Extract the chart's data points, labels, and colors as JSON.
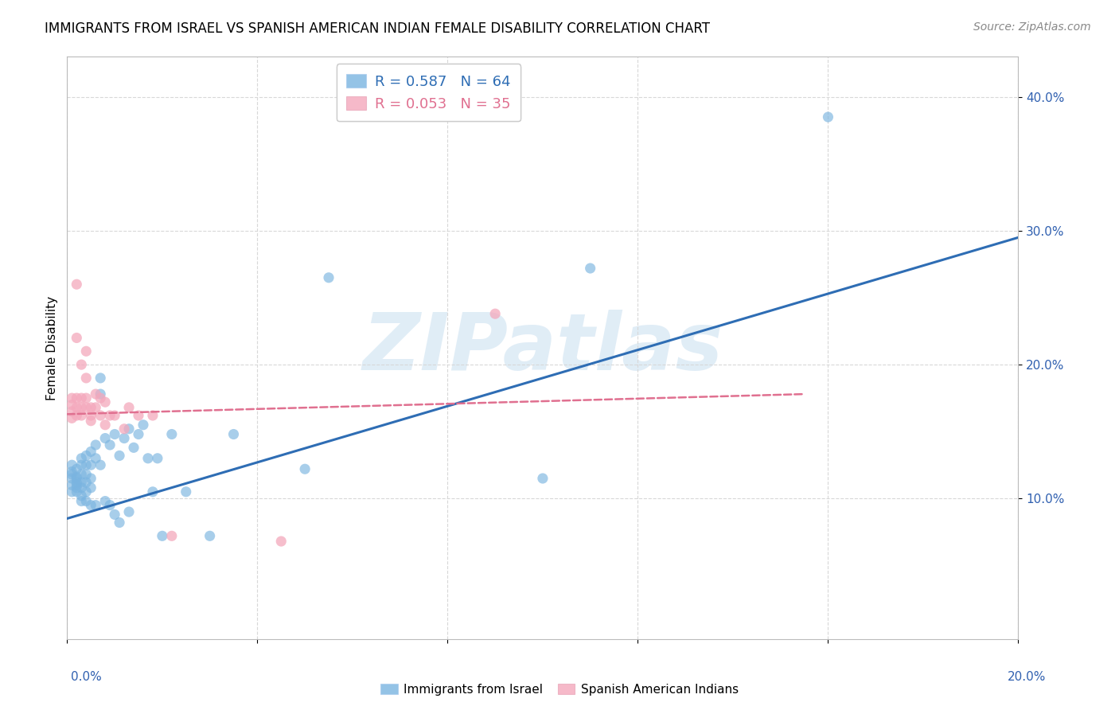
{
  "title": "IMMIGRANTS FROM ISRAEL VS SPANISH AMERICAN INDIAN FEMALE DISABILITY CORRELATION CHART",
  "source": "Source: ZipAtlas.com",
  "ylabel": "Female Disability",
  "xlim": [
    0.0,
    0.2
  ],
  "ylim": [
    -0.005,
    0.43
  ],
  "ytick_positions": [
    0.1,
    0.2,
    0.3,
    0.4
  ],
  "ytick_labels": [
    "10.0%",
    "20.0%",
    "30.0%",
    "40.0%"
  ],
  "xtick_positions": [
    0.0,
    0.04,
    0.08,
    0.12,
    0.16,
    0.2
  ],
  "legend_r_entries": [
    {
      "label": "R = 0.587   N = 64",
      "color": "#5b9bd5"
    },
    {
      "label": "R = 0.053   N = 35",
      "color": "#f4a0b0"
    }
  ],
  "legend_labels_bottom": [
    "Immigrants from Israel",
    "Spanish American Indians"
  ],
  "blue_scatter_x": [
    0.001,
    0.001,
    0.001,
    0.001,
    0.001,
    0.001,
    0.002,
    0.002,
    0.002,
    0.002,
    0.002,
    0.002,
    0.002,
    0.003,
    0.003,
    0.003,
    0.003,
    0.003,
    0.003,
    0.003,
    0.004,
    0.004,
    0.004,
    0.004,
    0.004,
    0.004,
    0.005,
    0.005,
    0.005,
    0.005,
    0.005,
    0.006,
    0.006,
    0.006,
    0.007,
    0.007,
    0.007,
    0.008,
    0.008,
    0.009,
    0.009,
    0.01,
    0.01,
    0.011,
    0.011,
    0.012,
    0.013,
    0.013,
    0.014,
    0.015,
    0.016,
    0.017,
    0.018,
    0.019,
    0.02,
    0.022,
    0.025,
    0.03,
    0.035,
    0.05,
    0.055,
    0.1,
    0.11,
    0.16
  ],
  "blue_scatter_y": [
    0.12,
    0.115,
    0.11,
    0.125,
    0.105,
    0.118,
    0.115,
    0.112,
    0.108,
    0.122,
    0.116,
    0.11,
    0.105,
    0.13,
    0.125,
    0.118,
    0.112,
    0.108,
    0.102,
    0.098,
    0.132,
    0.125,
    0.118,
    0.112,
    0.105,
    0.098,
    0.135,
    0.125,
    0.115,
    0.108,
    0.095,
    0.14,
    0.13,
    0.095,
    0.19,
    0.178,
    0.125,
    0.145,
    0.098,
    0.14,
    0.095,
    0.148,
    0.088,
    0.082,
    0.132,
    0.145,
    0.152,
    0.09,
    0.138,
    0.148,
    0.155,
    0.13,
    0.105,
    0.13,
    0.072,
    0.148,
    0.105,
    0.072,
    0.148,
    0.122,
    0.265,
    0.115,
    0.272,
    0.385
  ],
  "pink_scatter_x": [
    0.001,
    0.001,
    0.001,
    0.001,
    0.002,
    0.002,
    0.002,
    0.002,
    0.002,
    0.003,
    0.003,
    0.003,
    0.003,
    0.004,
    0.004,
    0.004,
    0.004,
    0.005,
    0.005,
    0.005,
    0.006,
    0.006,
    0.007,
    0.007,
    0.008,
    0.008,
    0.009,
    0.01,
    0.012,
    0.013,
    0.015,
    0.018,
    0.022,
    0.045,
    0.09
  ],
  "pink_scatter_y": [
    0.17,
    0.165,
    0.175,
    0.16,
    0.26,
    0.22,
    0.175,
    0.168,
    0.162,
    0.2,
    0.175,
    0.168,
    0.162,
    0.21,
    0.19,
    0.175,
    0.168,
    0.168,
    0.162,
    0.158,
    0.178,
    0.168,
    0.175,
    0.162,
    0.155,
    0.172,
    0.162,
    0.162,
    0.152,
    0.168,
    0.162,
    0.162,
    0.072,
    0.068,
    0.238
  ],
  "blue_line_x": [
    0.0,
    0.2
  ],
  "blue_line_y": [
    0.085,
    0.295
  ],
  "pink_line_x": [
    0.0,
    0.155
  ],
  "pink_line_y": [
    0.163,
    0.178
  ],
  "blue_color": "#7ab4e0",
  "pink_color": "#f4a8bc",
  "blue_line_color": "#2e6db4",
  "pink_line_color": "#e07090",
  "tick_color": "#3060b0",
  "watermark_text": "ZIPatlas",
  "watermark_color": "#c8dff0",
  "grid_color": "#d8d8d8",
  "title_fontsize": 12,
  "source_fontsize": 10,
  "tick_fontsize": 11,
  "ylabel_fontsize": 11,
  "legend_fontsize": 13
}
